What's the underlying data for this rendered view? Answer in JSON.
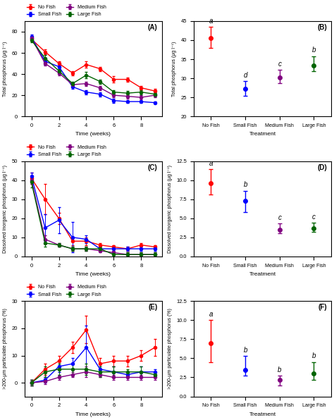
{
  "chart_data": [
    {
      "type": "line",
      "title": "(A)",
      "xlabel": "Time (weeks)",
      "ylabel": "Total phosphorus (µg l⁻¹)",
      "x": [
        0,
        1,
        2,
        3,
        4,
        5,
        6,
        7,
        8,
        9
      ],
      "xlim": [
        -0.5,
        9.5
      ],
      "xticks": [
        0,
        2,
        4,
        6,
        8
      ],
      "ylim": [
        0,
        90
      ],
      "yticks": [
        0,
        20,
        40,
        60,
        80
      ],
      "legend": "lower left",
      "marker": "o",
      "series": [
        {
          "name": "No Fish",
          "color": "#FF0000",
          "values": [
            73,
            61,
            50,
            41,
            49,
            45,
            35,
            35,
            27,
            24
          ],
          "yerr": [
            2,
            2,
            2,
            2,
            3,
            2,
            3,
            2,
            2,
            2
          ]
        },
        {
          "name": "Small Fish",
          "color": "#0000FF",
          "values": [
            75,
            52,
            47,
            28,
            23,
            21,
            15,
            14,
            14,
            13
          ],
          "yerr": [
            2,
            3,
            2,
            2,
            2,
            2,
            2,
            1,
            1,
            1
          ]
        },
        {
          "name": "Medium Fish",
          "color": "#800080",
          "values": [
            74,
            50,
            41,
            30,
            31,
            27,
            20,
            19,
            18,
            20
          ],
          "yerr": [
            2,
            2,
            2,
            2,
            2,
            2,
            2,
            2,
            2,
            2
          ]
        },
        {
          "name": "Large Fish",
          "color": "#006400",
          "values": [
            72,
            55,
            43,
            31,
            39,
            33,
            23,
            22,
            23,
            21
          ],
          "yerr": [
            2,
            3,
            2,
            2,
            3,
            2,
            2,
            2,
            2,
            2
          ]
        }
      ]
    },
    {
      "type": "scatter",
      "title": "(B)",
      "xlabel": "Treatment",
      "ylabel": "Total phosphorus (µg l⁻¹)",
      "categories": [
        "No Fish",
        "Small Fish",
        "Medium Fish",
        "Large Fish"
      ],
      "values": [
        40.5,
        27.2,
        30.2,
        33.3
      ],
      "yerr_low": [
        2.5,
        1.8,
        1.5,
        1.5
      ],
      "yerr_high": [
        3.0,
        2.0,
        2.0,
        2.5
      ],
      "colors": [
        "#FF0000",
        "#0000FF",
        "#800080",
        "#006400"
      ],
      "marker": "o",
      "annotations": [
        {
          "text": "a",
          "category": "No Fish"
        },
        {
          "text": "d",
          "category": "Small Fish"
        },
        {
          "text": "c",
          "category": "Medium Fish"
        },
        {
          "text": "b",
          "category": "Large Fish"
        }
      ],
      "ylim": [
        20,
        45
      ],
      "yticks": [
        20,
        25,
        30,
        35,
        40,
        45
      ]
    },
    {
      "type": "line",
      "title": "(C)",
      "xlabel": "Time (weeks)",
      "ylabel": "Dissolved inorganic phosphorus (µg l⁻¹)",
      "x": [
        0,
        1,
        2,
        3,
        4,
        5,
        6,
        7,
        8,
        9
      ],
      "xlim": [
        -0.5,
        9.5
      ],
      "xticks": [
        0,
        2,
        4,
        6,
        8
      ],
      "ylim": [
        0,
        50
      ],
      "yticks": [
        0,
        10,
        20,
        30,
        40,
        50
      ],
      "legend": "lower left",
      "marker": "o",
      "series": [
        {
          "name": "No Fish",
          "color": "#FF0000",
          "values": [
            41,
            30,
            20,
            8,
            8,
            6,
            5,
            4,
            6,
            5
          ],
          "yerr": [
            3,
            8,
            3,
            2,
            2,
            1,
            1,
            1,
            1,
            1
          ]
        },
        {
          "name": "Small Fish",
          "color": "#0000FF",
          "values": [
            42,
            15,
            19,
            10,
            9,
            4,
            4,
            4,
            4,
            4
          ],
          "yerr": [
            2,
            7,
            7,
            8,
            2,
            1,
            1,
            1,
            1,
            1
          ]
        },
        {
          "name": "Medium Fish",
          "color": "#800080",
          "values": [
            40,
            9,
            6,
            4,
            4,
            3,
            2,
            1,
            1,
            1
          ],
          "yerr": [
            2,
            2,
            1,
            1,
            1,
            1,
            1,
            1,
            1,
            1
          ]
        },
        {
          "name": "Large Fish",
          "color": "#006400",
          "values": [
            39,
            7,
            6,
            4,
            4,
            4,
            1,
            1,
            1,
            1
          ],
          "yerr": [
            3,
            2,
            1,
            1,
            1,
            1,
            1,
            1,
            1,
            1
          ]
        }
      ]
    },
    {
      "type": "scatter",
      "title": "(D)",
      "xlabel": "Treatment",
      "ylabel": "Dissolved inorganic phosphorus (µg l⁻¹)",
      "categories": [
        "No Fish",
        "Small Fish",
        "Medium Fish",
        "Large Fish"
      ],
      "values": [
        9.6,
        7.3,
        3.5,
        3.7
      ],
      "yerr_low": [
        1.5,
        1.5,
        0.5,
        0.5
      ],
      "yerr_high": [
        1.8,
        1.3,
        0.8,
        0.7
      ],
      "colors": [
        "#FF0000",
        "#0000FF",
        "#800080",
        "#006400"
      ],
      "marker": "o",
      "annotations": [
        {
          "text": "a",
          "category": "No Fish"
        },
        {
          "text": "b",
          "category": "Small Fish"
        },
        {
          "text": "c",
          "category": "Medium Fish"
        },
        {
          "text": "c",
          "category": "Large Fish"
        }
      ],
      "ylim": [
        0,
        12.5
      ],
      "yticks": [
        0.0,
        2.5,
        5.0,
        7.5,
        10.0,
        12.5
      ]
    },
    {
      "type": "line",
      "title": "(E)",
      "xlabel": "Time (weeks)",
      "ylabel": ">200-µm particulate phosphorus (%)",
      "x": [
        0,
        1,
        2,
        3,
        4,
        5,
        6,
        7,
        8,
        9
      ],
      "xlim": [
        -0.5,
        9.5
      ],
      "xticks": [
        0,
        2,
        4,
        6,
        8
      ],
      "ylim": [
        -5,
        30
      ],
      "yticks": [
        0,
        10,
        20,
        30
      ],
      "legend": "lower left",
      "marker": "o",
      "series": [
        {
          "name": "No Fish",
          "color": "#FF0000",
          "values": [
            0,
            5,
            8,
            13,
            19.5,
            7,
            8,
            8,
            10,
            13
          ],
          "yerr": [
            1,
            2,
            2,
            2,
            5,
            2,
            2,
            2,
            2,
            3
          ]
        },
        {
          "name": "Small Fish",
          "color": "#0000FF",
          "values": [
            0,
            1,
            6,
            7,
            13,
            5,
            4,
            3,
            4,
            4
          ],
          "yerr": [
            1,
            1,
            2,
            2,
            8,
            2,
            2,
            1,
            2,
            1
          ]
        },
        {
          "name": "Medium Fish",
          "color": "#800080",
          "values": [
            0,
            0.5,
            2,
            3,
            4,
            3,
            2,
            2,
            2,
            2
          ],
          "yerr": [
            1,
            1,
            1,
            1,
            2,
            1,
            1,
            1,
            1,
            1
          ]
        },
        {
          "name": "Large Fish",
          "color": "#006400",
          "values": [
            0,
            4,
            5,
            5,
            5,
            4,
            4,
            4,
            4,
            3
          ],
          "yerr": [
            1,
            2,
            2,
            2,
            2,
            2,
            2,
            1,
            2,
            1
          ]
        }
      ]
    },
    {
      "type": "scatter",
      "title": "(F)",
      "xlabel": "Treatment",
      "ylabel": ">200-µm particulate phosphorus (%)",
      "categories": [
        "No Fish",
        "Small Fish",
        "Medium Fish",
        "Large Fish"
      ],
      "values": [
        7.0,
        3.5,
        2.2,
        3.0
      ],
      "yerr_low": [
        2.5,
        0.8,
        0.8,
        0.8
      ],
      "yerr_high": [
        3.0,
        1.8,
        0.5,
        1.5
      ],
      "colors": [
        "#FF0000",
        "#0000FF",
        "#800080",
        "#006400"
      ],
      "marker": "o",
      "annotations": [
        {
          "text": "a",
          "category": "No Fish"
        },
        {
          "text": "b",
          "category": "Small Fish"
        },
        {
          "text": "b",
          "category": "Medium Fish"
        },
        {
          "text": "b",
          "category": "Large Fish"
        }
      ],
      "ylim": [
        0,
        12.5
      ],
      "yticks": [
        0.0,
        2.5,
        5.0,
        7.5,
        10.0,
        12.5
      ]
    }
  ]
}
